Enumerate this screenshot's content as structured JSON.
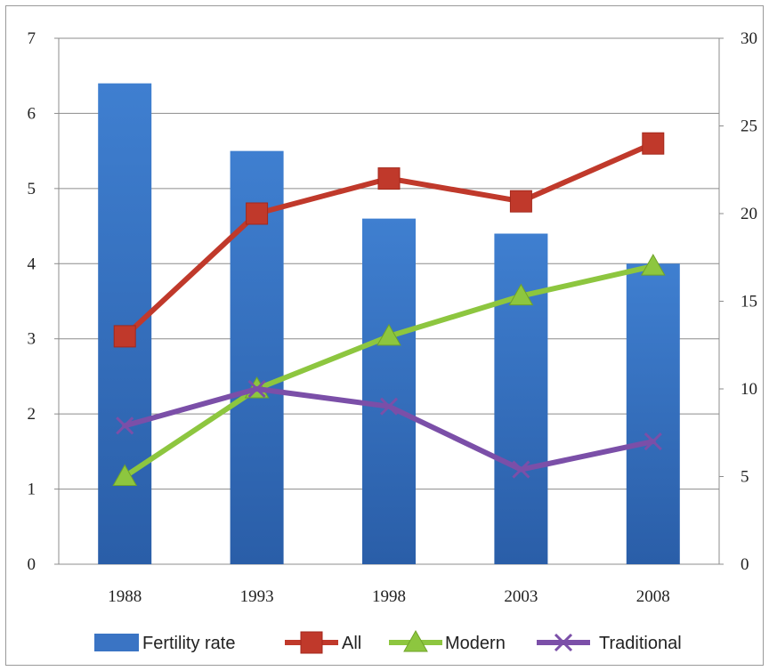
{
  "chart_data": {
    "type": "bar",
    "categories": [
      "1988",
      "1993",
      "1998",
      "2003",
      "2008"
    ],
    "bar_series": {
      "name": "Fertility rate",
      "axis": "left",
      "values": [
        6.4,
        5.5,
        4.6,
        4.4,
        4.0
      ],
      "color": "#3a74c4"
    },
    "line_series": [
      {
        "name": "All",
        "axis": "right",
        "values": [
          13,
          20,
          22,
          20.7,
          24
        ],
        "color": "#c0392b",
        "marker": "square"
      },
      {
        "name": "Modern",
        "axis": "right",
        "values": [
          5,
          10,
          13,
          15.3,
          17
        ],
        "color": "#8dc63f",
        "marker": "triangle"
      },
      {
        "name": "Traditional",
        "axis": "right",
        "values": [
          7.9,
          10,
          9,
          5.4,
          7
        ],
        "color": "#7b4fa8",
        "marker": "x"
      }
    ],
    "left_axis": {
      "ylim": [
        0,
        7
      ],
      "ticks": [
        "0",
        "1",
        "2",
        "3",
        "4",
        "5",
        "6",
        "7"
      ]
    },
    "right_axis": {
      "ylim": [
        0,
        30
      ],
      "ticks": [
        "0",
        "5",
        "10",
        "15",
        "20",
        "25",
        "30"
      ]
    },
    "grid": true,
    "legend_position": "bottom",
    "legend": [
      "Fertility rate",
      "All",
      "Modern",
      "Traditional"
    ]
  }
}
